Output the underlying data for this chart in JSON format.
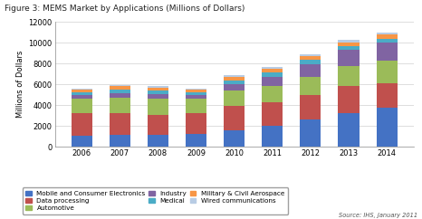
{
  "title": "Figure 3: MEMS Market by Applications (Millions of Dollars)",
  "ylabel": "Millions of Dollars",
  "years": [
    2006,
    2007,
    2008,
    2009,
    2010,
    2011,
    2012,
    2013,
    2014
  ],
  "series": {
    "Mobile and Consumer Electronics": [
      1050,
      1150,
      1100,
      1200,
      1600,
      2050,
      2600,
      3200,
      3750
    ],
    "Data processing": [
      2150,
      2100,
      2000,
      2050,
      2300,
      2250,
      2350,
      2600,
      2350
    ],
    "Automotive": [
      1400,
      1500,
      1500,
      1350,
      1500,
      1550,
      1750,
      1950,
      2150
    ],
    "Industry": [
      350,
      430,
      490,
      380,
      620,
      880,
      1250,
      1550,
      1750
    ],
    "Medical": [
      290,
      330,
      340,
      290,
      380,
      430,
      380,
      390,
      390
    ],
    "Military & Civil Aerospace": [
      260,
      290,
      280,
      250,
      290,
      300,
      340,
      360,
      370
    ],
    "Wired communications": [
      100,
      130,
      130,
      90,
      180,
      170,
      180,
      230,
      250
    ]
  },
  "colors": {
    "Mobile and Consumer Electronics": "#4472C4",
    "Data processing": "#C0504D",
    "Automotive": "#9BBB59",
    "Industry": "#8064A2",
    "Medical": "#4BACC6",
    "Military & Civil Aerospace": "#F79646",
    "Wired communications": "#B8CCE4"
  },
  "ylim": [
    0,
    12000
  ],
  "yticks": [
    0,
    2000,
    4000,
    6000,
    8000,
    10000,
    12000
  ],
  "background_color": "#ffffff",
  "source_text": "Source: IHS, January 2011",
  "legend_order": [
    "Mobile and Consumer Electronics",
    "Data processing",
    "Automotive",
    "Industry",
    "Medical",
    "Military & Civil Aerospace",
    "Wired communications"
  ]
}
